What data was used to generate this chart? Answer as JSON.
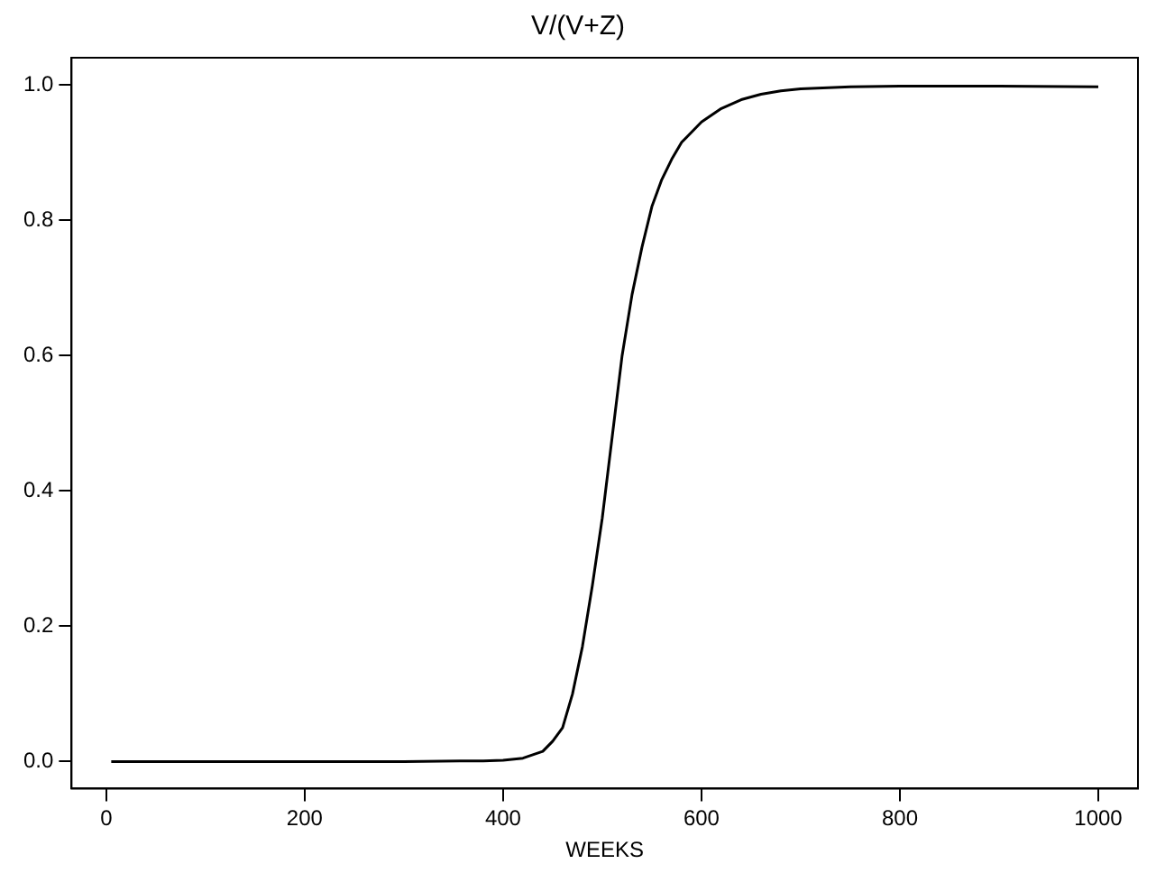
{
  "chart_data": {
    "type": "line",
    "title": "V/(V+Z)",
    "xlabel": "WEEKS",
    "x": [
      5,
      100,
      200,
      300,
      380,
      400,
      420,
      440,
      450,
      460,
      470,
      480,
      490,
      500,
      510,
      520,
      530,
      540,
      550,
      560,
      570,
      580,
      600,
      620,
      640,
      660,
      680,
      700,
      750,
      800,
      900,
      1000
    ],
    "series": [
      {
        "color": "#000000",
        "values": [
          0,
          0,
          0,
          0,
          0.001,
          0.002,
          0.005,
          0.015,
          0.03,
          0.05,
          0.1,
          0.17,
          0.26,
          0.36,
          0.48,
          0.6,
          0.69,
          0.76,
          0.82,
          0.86,
          0.89,
          0.915,
          0.945,
          0.965,
          0.978,
          0.986,
          0.991,
          0.994,
          0.997,
          0.998,
          0.998,
          0.997
        ]
      }
    ],
    "xlim": [
      -35,
      1040
    ],
    "xticks": [
      0,
      200,
      400,
      600,
      800,
      1000
    ],
    "ylim": [
      -0.04,
      1.04
    ],
    "yticks": [
      {
        "value": 0,
        "label": "0.0"
      },
      {
        "value": 0.2,
        "label": "0.2"
      },
      {
        "value": 0.4,
        "label": "0.4"
      },
      {
        "value": 0.6,
        "label": "0.6"
      },
      {
        "value": 0.8,
        "label": "0.8"
      },
      {
        "value": 1,
        "label": "1.0"
      }
    ],
    "grid": false,
    "legend": false,
    "marker": "none",
    "line_style": "solid"
  }
}
